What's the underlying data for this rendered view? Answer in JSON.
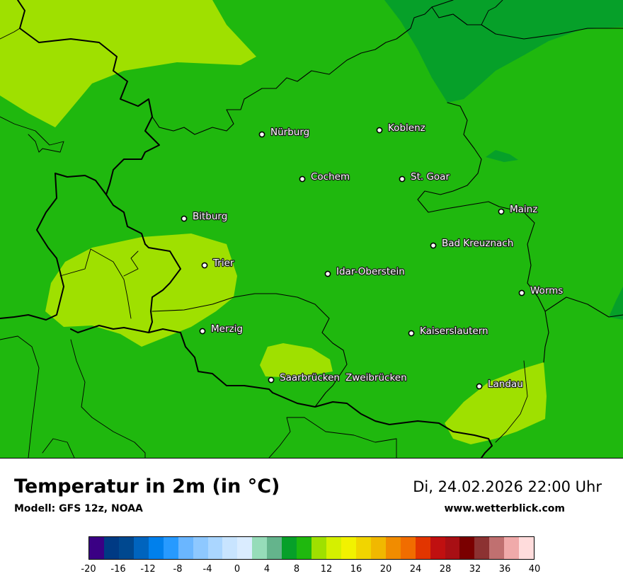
{
  "map": {
    "cities": [
      {
        "name": "Nürburg"
      },
      {
        "name": "Koblenz"
      },
      {
        "name": "Cochem"
      },
      {
        "name": "St. Goar"
      },
      {
        "name": "Mainz"
      },
      {
        "name": "Bitburg"
      },
      {
        "name": "Bad Kreuznach"
      },
      {
        "name": "Trier"
      },
      {
        "name": "Idar-Oberstein"
      },
      {
        "name": "Worms"
      },
      {
        "name": "Merzig"
      },
      {
        "name": "Kaiserslautern"
      },
      {
        "name": "Saarbrücken"
      },
      {
        "name": "Zweibrücken"
      },
      {
        "name": "Landau"
      }
    ],
    "temperature_bands": [
      {
        "range": "8 to 10",
        "color": "#06a029"
      },
      {
        "range": "10 to 12",
        "color": "#1fb80e"
      },
      {
        "range": "12 to 14",
        "color": "#9fe000"
      }
    ]
  },
  "footer": {
    "title": "Temperatur in 2m (in °C)",
    "model": "Modell: GFS 12z, NOAA",
    "datetime": "Di, 24.02.2026 22:00 Uhr",
    "site": "www.wetterblick.com"
  },
  "legend": {
    "unit": "°C",
    "colors": [
      "#3a0084",
      "#003a84",
      "#00488f",
      "#0064be",
      "#0080ec",
      "#279aff",
      "#6ab6ff",
      "#8ec8ff",
      "#aad6ff",
      "#c8e4ff",
      "#daecff",
      "#96dcb9",
      "#64b48c",
      "#06a029",
      "#1fb80e",
      "#9fe000",
      "#d5f000",
      "#f2f200",
      "#f1d500",
      "#f1b800",
      "#f18c00",
      "#f16d00",
      "#e23500",
      "#c01010",
      "#a80f14",
      "#7a0000",
      "#8c3232",
      "#c07070",
      "#f0aaaa",
      "#ffdcdc"
    ],
    "ticks": [
      "-20",
      "-16",
      "-12",
      "-8",
      "-4",
      "0",
      "4",
      "8",
      "12",
      "16",
      "20",
      "24",
      "28",
      "32",
      "36",
      "40"
    ]
  }
}
